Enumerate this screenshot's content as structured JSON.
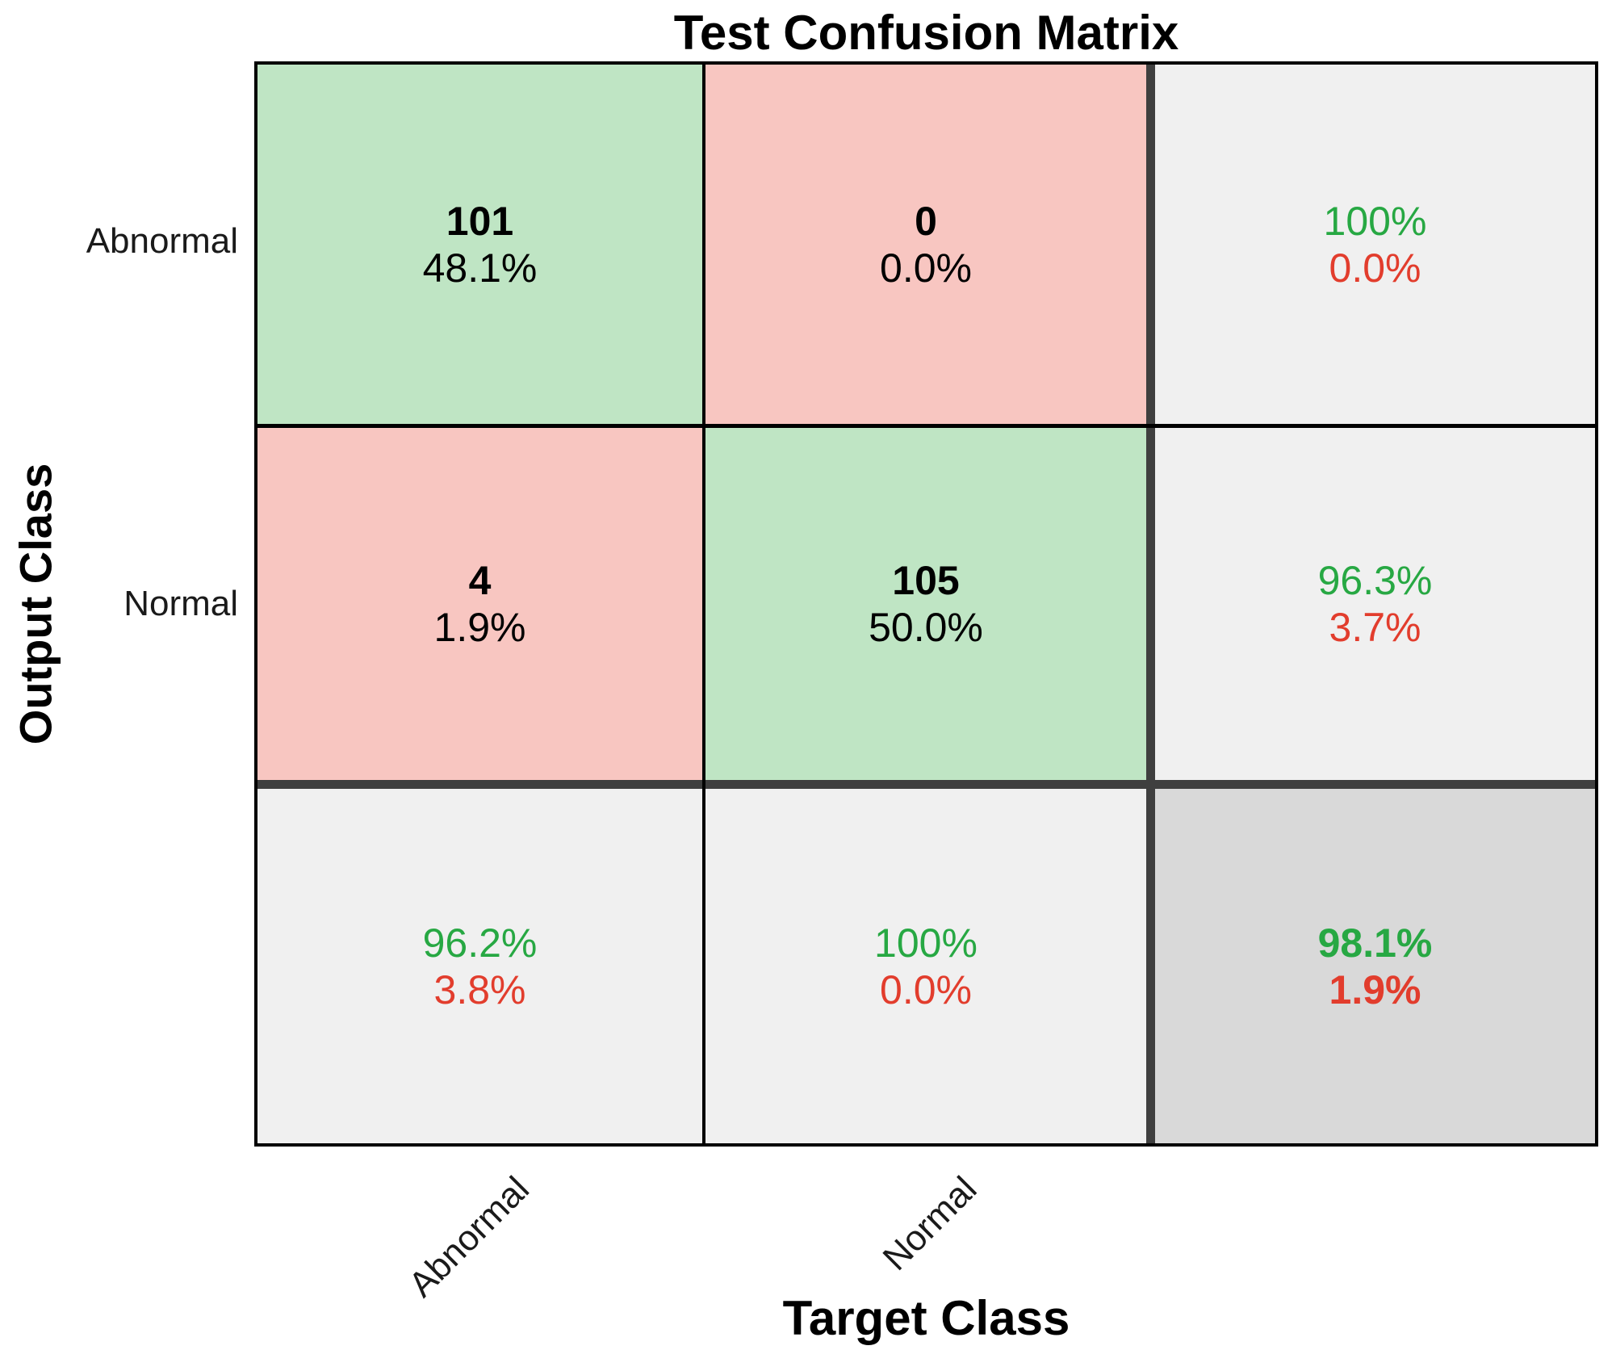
{
  "chart_data": {
    "type": "heatmap",
    "subtype": "confusion-matrix",
    "title": "Test Confusion Matrix",
    "xlabel": "Target Class",
    "ylabel": "Output Class",
    "classes": [
      "Abnormal",
      "Normal"
    ],
    "counts": [
      [
        101,
        0
      ],
      [
        4,
        105
      ]
    ],
    "count_percentages": [
      [
        "48.1%",
        "0.0%"
      ],
      [
        "1.9%",
        "50.0%"
      ]
    ],
    "row_summary": [
      {
        "correct": "100%",
        "incorrect": "0.0%"
      },
      {
        "correct": "96.3%",
        "incorrect": "3.7%"
      }
    ],
    "col_summary": [
      {
        "correct": "96.2%",
        "incorrect": "3.8%"
      },
      {
        "correct": "100%",
        "incorrect": "0.0%"
      }
    ],
    "overall": {
      "correct": "98.1%",
      "incorrect": "1.9%"
    },
    "cells": [
      {
        "line1": "101",
        "line2": "48.1%"
      },
      {
        "line1": "0",
        "line2": "0.0%"
      },
      {
        "line1": "100%",
        "line2": "0.0%"
      },
      {
        "line1": "4",
        "line2": "1.9%"
      },
      {
        "line1": "105",
        "line2": "50.0%"
      },
      {
        "line1": "96.3%",
        "line2": "3.7%"
      },
      {
        "line1": "96.2%",
        "line2": "3.8%"
      },
      {
        "line1": "100%",
        "line2": "0.0%"
      },
      {
        "line1": "98.1%",
        "line2": "1.9%"
      }
    ]
  },
  "colors": {
    "correct_bg": "#bfe5c4",
    "incorrect_bg": "#f8c6c1",
    "summary_bg": "#f0f0f0",
    "total_bg": "#d9d9d9",
    "grid_thick_line": "#3f3f3f",
    "green_text": "#27a843",
    "red_text": "#e23d2d"
  }
}
